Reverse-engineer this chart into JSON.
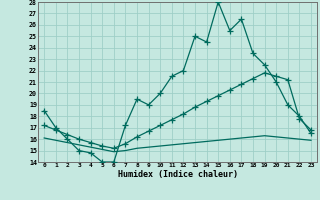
{
  "xlabel": "Humidex (Indice chaleur)",
  "bg_color": "#c5e8e0",
  "grid_color": "#9fcfc7",
  "line_color": "#006b5e",
  "xlim": [
    -0.5,
    23.5
  ],
  "ylim": [
    14,
    28
  ],
  "xticks": [
    0,
    1,
    2,
    3,
    4,
    5,
    6,
    7,
    8,
    9,
    10,
    11,
    12,
    13,
    14,
    15,
    16,
    17,
    18,
    19,
    20,
    21,
    22,
    23
  ],
  "yticks": [
    14,
    15,
    16,
    17,
    18,
    19,
    20,
    21,
    22,
    23,
    24,
    25,
    26,
    27,
    28
  ],
  "line1_x": [
    0,
    1,
    2,
    3,
    4,
    5,
    6,
    7,
    8,
    9,
    10,
    11,
    12,
    13,
    14,
    15,
    16,
    17,
    18,
    19,
    20,
    21,
    22,
    23
  ],
  "line1_y": [
    18.5,
    17.0,
    16.0,
    15.0,
    14.8,
    14.0,
    14.0,
    17.2,
    19.5,
    19.0,
    20.0,
    21.5,
    22.0,
    25.0,
    24.5,
    28.0,
    25.5,
    26.5,
    23.5,
    22.5,
    21.0,
    19.0,
    18.0,
    16.5
  ],
  "line2_x": [
    0,
    1,
    2,
    3,
    4,
    5,
    6,
    7,
    8,
    9,
    10,
    11,
    12,
    13,
    14,
    15,
    16,
    17,
    18,
    19,
    20,
    21,
    22,
    23
  ],
  "line2_y": [
    17.2,
    16.8,
    16.4,
    16.0,
    15.7,
    15.4,
    15.2,
    15.6,
    16.2,
    16.7,
    17.2,
    17.7,
    18.2,
    18.8,
    19.3,
    19.8,
    20.3,
    20.8,
    21.3,
    21.8,
    21.5,
    21.2,
    17.8,
    16.8
  ],
  "line3_x": [
    0,
    1,
    2,
    3,
    4,
    5,
    6,
    7,
    8,
    9,
    10,
    11,
    12,
    13,
    14,
    15,
    16,
    17,
    18,
    19,
    20,
    21,
    22,
    23
  ],
  "line3_y": [
    16.1,
    15.9,
    15.7,
    15.5,
    15.3,
    15.1,
    14.9,
    15.0,
    15.2,
    15.3,
    15.4,
    15.5,
    15.6,
    15.7,
    15.8,
    15.9,
    16.0,
    16.1,
    16.2,
    16.3,
    16.2,
    16.1,
    16.0,
    15.9
  ]
}
